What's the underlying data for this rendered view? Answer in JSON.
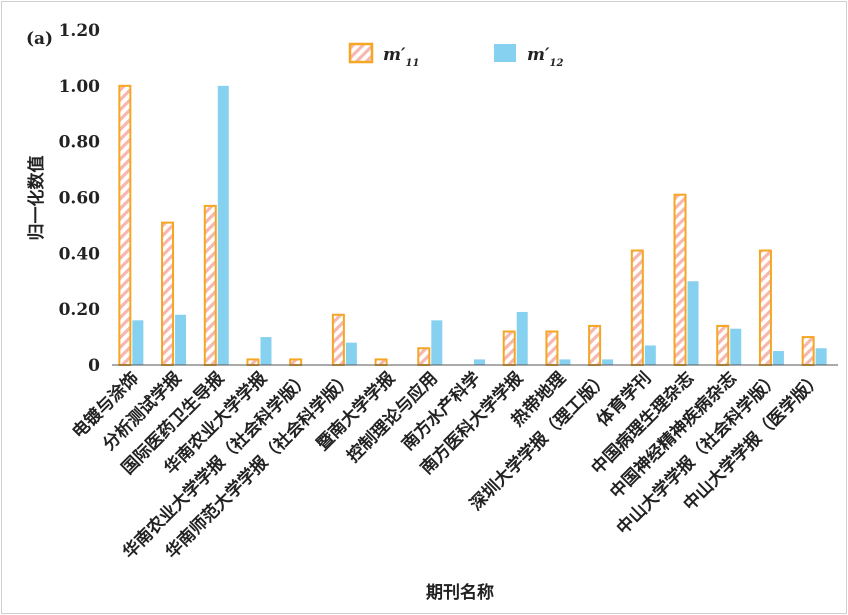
{
  "chart_data": {
    "type": "bar",
    "panel_label": "(a)",
    "xlabel": "期刊名称",
    "ylabel": "归一化数值",
    "ylim": [
      0,
      1.2
    ],
    "yticks": [
      "0",
      "0.20",
      "0.40",
      "0.60",
      "0.80",
      "1.00",
      "1.20"
    ],
    "grid": false,
    "legend_position": "top-right",
    "categories": [
      "电镀与涂饰",
      "分析测试学报",
      "国际医药卫生导报",
      "华南农业大学学报",
      "华南农业大学学报（社会科学版）",
      "华南师范大学学报（社会科学版）",
      "暨南大学学报",
      "控制理论与应用",
      "南方水产科学",
      "南方医科大学学报",
      "热带地理",
      "深圳大学学报（理工版）",
      "体育学刊",
      "中国病理生理杂志",
      "中国神经精神疾病杂志",
      "中山大学学报（社会科学版）",
      "中山大学学报（医学版）"
    ],
    "series": [
      {
        "name_main": "m′",
        "name_sub": "11",
        "color": "#f5a623",
        "values": [
          1.0,
          0.51,
          0.57,
          0.02,
          0.02,
          0.18,
          0.02,
          0.06,
          0.0,
          0.12,
          0.12,
          0.14,
          0.41,
          0.61,
          0.14,
          0.41,
          0.1
        ]
      },
      {
        "name_main": "m′",
        "name_sub": "12",
        "color": "#86d1ef",
        "values": [
          0.16,
          0.18,
          1.0,
          0.1,
          0.0,
          0.08,
          0.0,
          0.16,
          0.02,
          0.19,
          0.02,
          0.02,
          0.07,
          0.3,
          0.13,
          0.05,
          0.06
        ]
      }
    ]
  }
}
